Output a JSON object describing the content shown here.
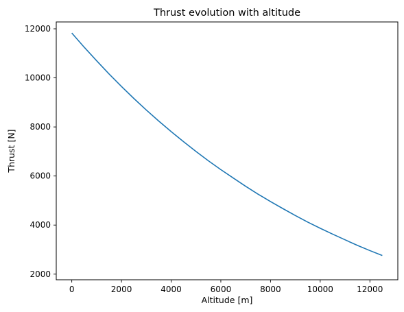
{
  "chart_data": {
    "type": "line",
    "title": "Thrust evolution with altitude",
    "xlabel": "Altitude [m]",
    "ylabel": "Thrust [N]",
    "xlim": [
      -625,
      13125
    ],
    "ylim": [
      1770,
      12280
    ],
    "xticks": [
      0,
      2000,
      4000,
      6000,
      8000,
      10000,
      12000
    ],
    "yticks": [
      2000,
      4000,
      6000,
      8000,
      10000,
      12000
    ],
    "grid": false,
    "legend": "none",
    "series": [
      {
        "color": "#1f77b4",
        "x": [
          0,
          500,
          1000,
          1500,
          2000,
          2500,
          3000,
          3500,
          4000,
          4500,
          5000,
          5500,
          6000,
          6500,
          7000,
          7500,
          8000,
          8500,
          9000,
          9500,
          10000,
          10500,
          11000,
          11500,
          12000,
          12500
        ],
        "y": [
          11830,
          11250,
          10700,
          10160,
          9650,
          9160,
          8690,
          8240,
          7810,
          7400,
          7000,
          6620,
          6260,
          5920,
          5580,
          5260,
          4960,
          4670,
          4390,
          4120,
          3870,
          3630,
          3400,
          3170,
          2960,
          2760
        ]
      }
    ]
  }
}
